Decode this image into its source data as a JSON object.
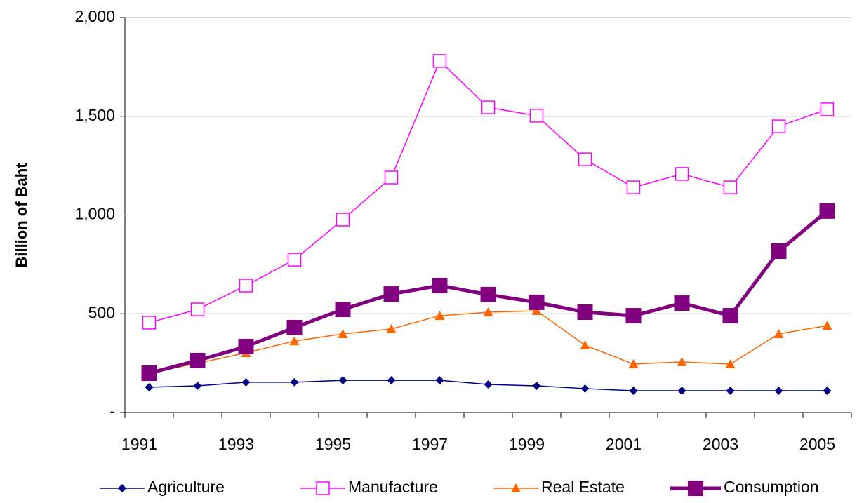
{
  "chart_data": {
    "type": "line",
    "y_label": "Billion of Baht",
    "categories": [
      "1991",
      null,
      "1993",
      null,
      "1995",
      null,
      "1997",
      null,
      "1999",
      null,
      "2001",
      null,
      "2003",
      null,
      "2005"
    ],
    "ylim": [
      0,
      2000
    ],
    "yticks": [
      {
        "value": 0,
        "label": "-"
      },
      500,
      {
        "value": 1000,
        "label": "1,000"
      },
      {
        "value": 1500,
        "label": "1,500"
      },
      {
        "value": 2000,
        "label": "2,000"
      }
    ],
    "grid": true,
    "legend": "bottom",
    "series": [
      {
        "name": "Agriculture",
        "color": "#000080",
        "marker": "diamond",
        "line_width": 1.5,
        "values": [
          128,
          135,
          153,
          153,
          163,
          163,
          163,
          142,
          135,
          121,
          110,
          110,
          110,
          110,
          110
        ]
      },
      {
        "name": "Manufacture",
        "color": "#FF00FF",
        "marker": "open-square",
        "line_width": 1.5,
        "values": [
          455,
          522,
          643,
          774,
          977,
          1190,
          1780,
          1545,
          1503,
          1282,
          1140,
          1208,
          1140,
          1449,
          1535
        ]
      },
      {
        "name": "Real Estate",
        "color": "#FF6600",
        "marker": "triangle",
        "line_width": 1.5,
        "values": [
          200,
          249,
          302,
          362,
          398,
          423,
          490,
          508,
          515,
          341,
          245,
          256,
          245,
          398,
          440
        ]
      },
      {
        "name": "Consumption",
        "color": "#800080",
        "marker": "square",
        "line_width": 5,
        "values": [
          199,
          263,
          334,
          430,
          522,
          600,
          643,
          597,
          558,
          508,
          490,
          554,
          490,
          817,
          1020
        ]
      }
    ]
  }
}
